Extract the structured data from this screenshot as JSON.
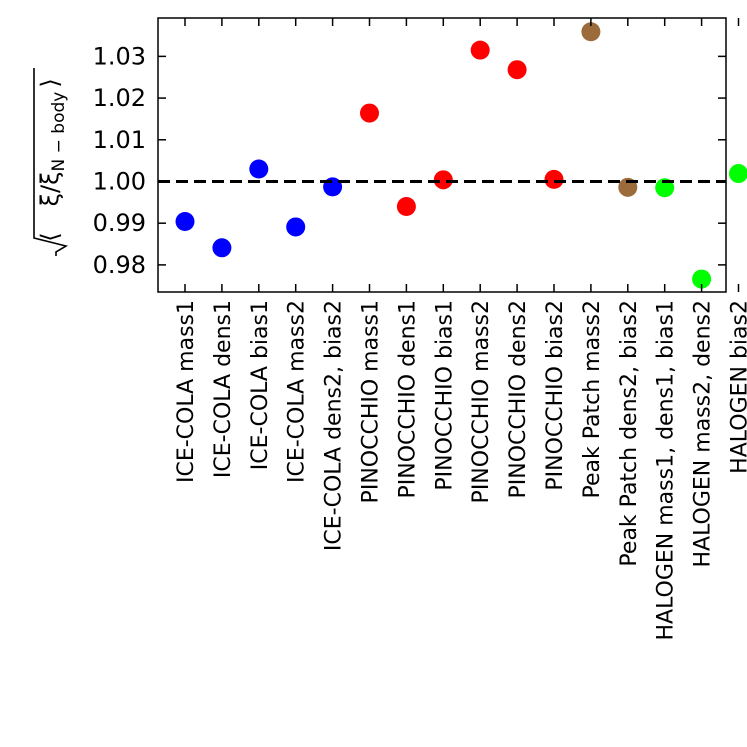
{
  "chart_data": {
    "type": "scatter",
    "title": "",
    "xlabel": "",
    "ylabel": {
      "text": "⟨√(ξ/ξ N − body)⟩",
      "xi_numer": "ξ",
      "slash": "/",
      "xi_denom": "ξ",
      "subscript": "N − body",
      "left_bracket": "⟨",
      "right_bracket": "⟩"
    },
    "ylim": [
      0.9735,
      1.0392
    ],
    "yticks": [
      0.98,
      0.99,
      1.0,
      1.01,
      1.02,
      1.03
    ],
    "ytick_labels": [
      "0.98",
      "0.99",
      "1.00",
      "1.01",
      "1.02",
      "1.03"
    ],
    "reference_line": {
      "y": 1.0,
      "style": "dashed",
      "color": "#000000"
    },
    "grid": false,
    "legend": "none",
    "categories": [
      "ICE-COLA mass1",
      "ICE-COLA dens1",
      "ICE-COLA bias1",
      "ICE-COLA mass2",
      "ICE-COLA dens2, bias2",
      "PINOCCHIO mass1",
      "PINOCCHIO dens1",
      "PINOCCHIO bias1",
      "PINOCCHIO mass2",
      "PINOCCHIO dens2",
      "PINOCCHIO bias2",
      "Peak Patch mass2",
      "Peak Patch dens2, bias2",
      "HALOGEN mass1, dens1, bias1",
      "HALOGEN mass2, dens2",
      "HALOGEN bias2"
    ],
    "values": [
      0.9904,
      0.9841,
      1.003,
      0.9891,
      0.9987,
      1.0164,
      0.994,
      1.0004,
      1.0315,
      1.0268,
      1.0005,
      1.0359,
      0.9986,
      0.9985,
      0.9766,
      1.0019
    ],
    "colors": [
      "#0000ff",
      "#0000ff",
      "#0000ff",
      "#0000ff",
      "#0000ff",
      "#ff0000",
      "#ff0000",
      "#ff0000",
      "#ff0000",
      "#ff0000",
      "#ff0000",
      "#9c6b3c",
      "#9c6b3c",
      "#00ff00",
      "#00ff00",
      "#00ff00"
    ]
  }
}
